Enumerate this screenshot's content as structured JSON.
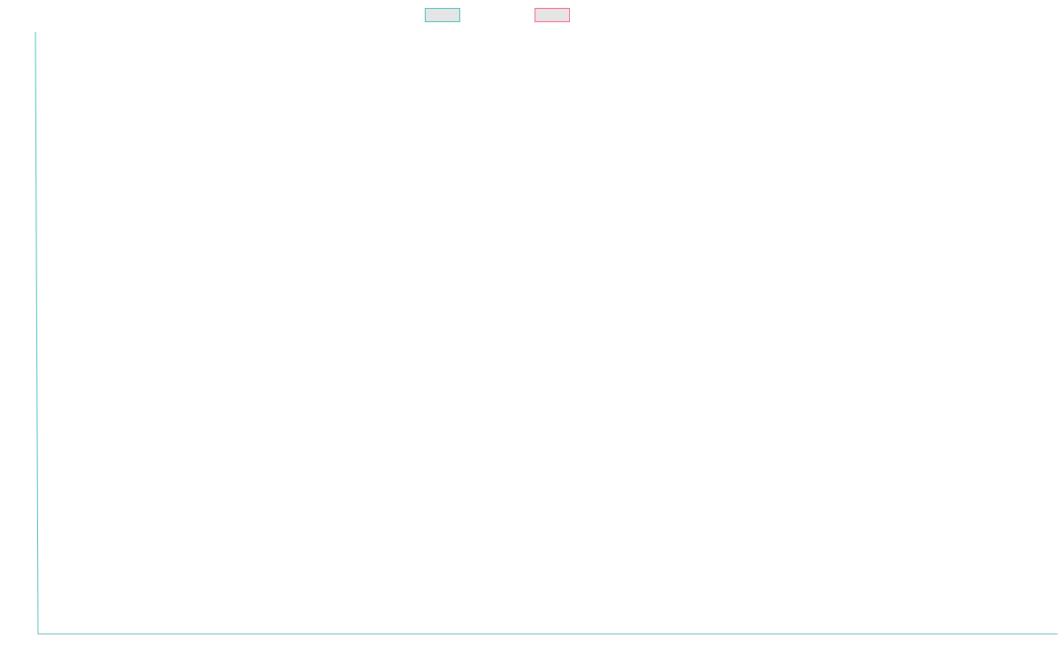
{
  "chart_data": {
    "type": "line",
    "title": "",
    "xlabel": "",
    "ylabel": "",
    "grid": false,
    "legend_position": "top-center",
    "series": [
      {
        "name": "",
        "color": "#4bc0c0",
        "fill": "#e5e5e5",
        "values": []
      },
      {
        "name": "",
        "color": "#ff6384",
        "fill": "#e5e5e5",
        "values": []
      }
    ],
    "x": []
  }
}
